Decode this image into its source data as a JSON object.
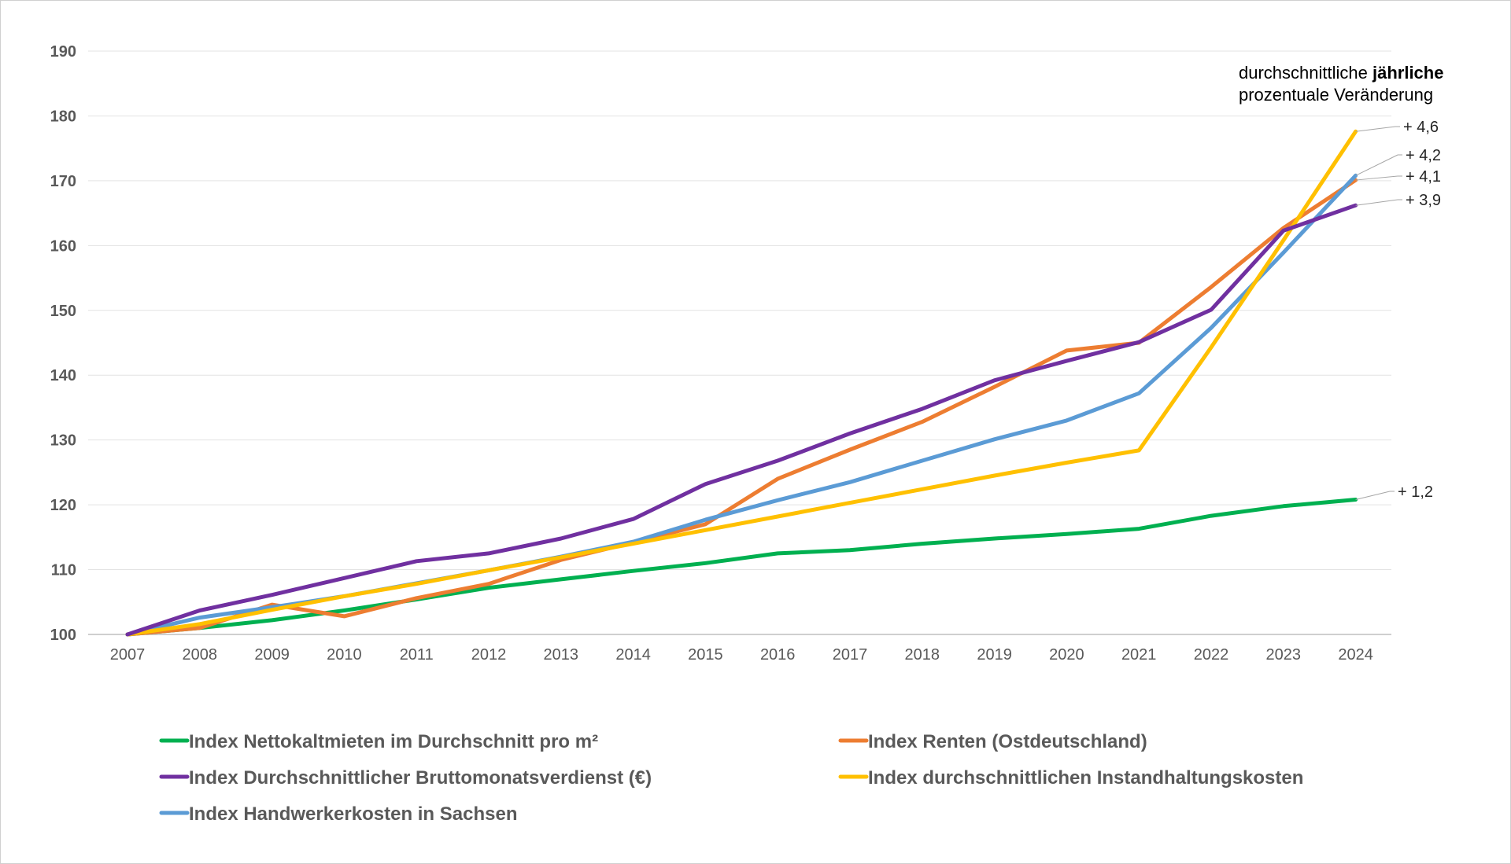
{
  "chart_data": {
    "type": "line",
    "title": "",
    "xlabel": "",
    "ylabel": "",
    "ylim": [
      100,
      190
    ],
    "yticks": [
      "100",
      "110",
      "120",
      "130",
      "140",
      "150",
      "160",
      "170",
      "180",
      "190"
    ],
    "grid": true,
    "legend_position": "bottom",
    "categories": [
      "2007",
      "2008",
      "2009",
      "2010",
      "2011",
      "2012",
      "2013",
      "2014",
      "2015",
      "2016",
      "2017",
      "2018",
      "2019",
      "2020",
      "2021",
      "2022",
      "2023",
      "2024"
    ],
    "series": [
      {
        "name": "Index Nettokaltmieten im Durchschnitt pro m²",
        "color": "#00b050",
        "values": [
          100,
          101,
          102.2,
          103.7,
          105.4,
          107.2,
          108.5,
          109.8,
          111,
          112.5,
          113,
          114,
          114.8,
          115.5,
          116.3,
          118.3,
          119.8,
          120.8
        ],
        "end_label": "+ 1,2"
      },
      {
        "name": "Index Renten (Ostdeutschland)",
        "color": "#ed7d31",
        "values": [
          100,
          101,
          104.6,
          102.8,
          105.6,
          107.8,
          111.5,
          114.2,
          117,
          124,
          128.5,
          132.8,
          138.2,
          143.8,
          145,
          153.6,
          162.7,
          170.1
        ],
        "end_label": "+ 4,1"
      },
      {
        "name": "Index Durchschnittlicher Bruttomonatsverdienst (€)",
        "color": "#7030a0",
        "values": [
          100,
          103.7,
          106.1,
          108.7,
          111.3,
          112.5,
          114.8,
          117.8,
          123.2,
          126.8,
          131,
          134.8,
          139.2,
          142.2,
          145.1,
          150.1,
          162.3,
          166.2
        ],
        "end_label": "+ 3,9"
      },
      {
        "name": "Index durchschnittlichen Instandhaltungskosten",
        "color": "#ffc000",
        "values": [
          100,
          101.6,
          103.8,
          105.9,
          107.8,
          109.9,
          111.9,
          114,
          116.1,
          118.2,
          120.3,
          122.4,
          124.5,
          126.5,
          128.4,
          144.3,
          160.8,
          177.6
        ],
        "end_label": "+ 4,6"
      },
      {
        "name": "Index Handwerkerkosten in Sachsen",
        "color": "#5b9bd5",
        "values": [
          100,
          102.6,
          104.2,
          105.9,
          107.9,
          109.9,
          112,
          114.3,
          117.7,
          120.7,
          123.5,
          126.8,
          130.1,
          133,
          137.2,
          147.3,
          158.9,
          170.8
        ],
        "end_label": "+ 4,2"
      }
    ],
    "annotation": {
      "line1_prefix": "durchschnittliche ",
      "line1_bold": "jährliche",
      "line2": "prozentuale Veränderung"
    }
  }
}
